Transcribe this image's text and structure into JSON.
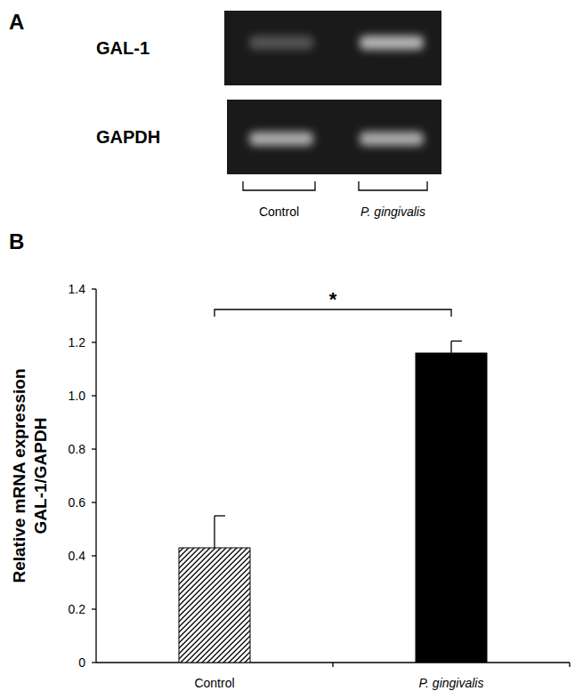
{
  "panel_labels": [
    "A",
    "B"
  ],
  "gel": {
    "rows": [
      "GAL-1",
      "GAPDH"
    ],
    "lanes": [
      "Control",
      "P. gingivalis"
    ]
  },
  "chart_data": {
    "type": "bar",
    "ylabel": "Relative mRNA expression\nGAL-1/GAPDH",
    "categories": [
      "Control",
      "P. gingivalis"
    ],
    "values": [
      0.43,
      1.16
    ],
    "errors": [
      0.12,
      0.045
    ],
    "colors": [
      "#000000",
      "#000000"
    ],
    "ylim": [
      0,
      1.4
    ],
    "yticks": [
      0,
      0.2,
      0.4,
      0.6,
      0.8,
      {
        "value": 1,
        "label": "1.0"
      },
      1.2,
      1.4
    ],
    "significance": [
      {
        "text": "*",
        "categories": [
          0,
          1
        ]
      }
    ],
    "grid": false
  }
}
